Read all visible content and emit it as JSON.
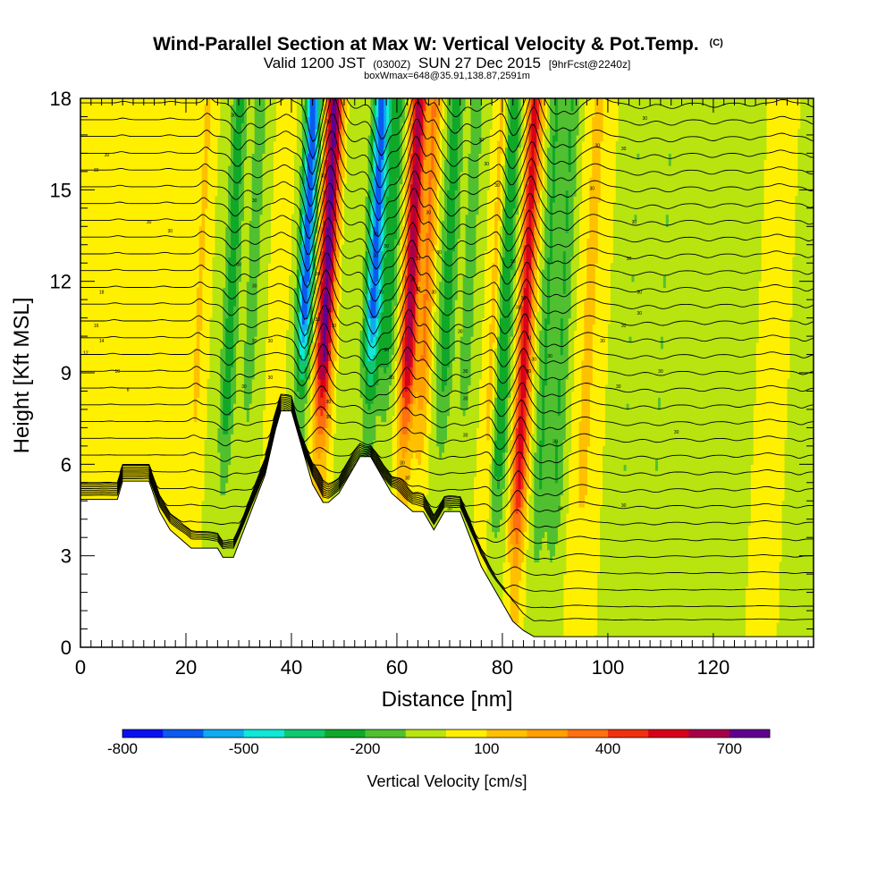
{
  "chart_data": {
    "type": "heatmap",
    "title": "Wind-Parallel Section at Max W: Vertical Velocity & Pot.Temp.",
    "title_mark": "(C)",
    "subtitle_main_a": "Valid 1200 JST",
    "subtitle_small_a": "(0300Z)",
    "subtitle_main_b": "SUN 27 Dec 2015",
    "subtitle_small_b": "[9hrFcst@2240z]",
    "subtitle2": "boxWmax=648@35.91,138.87,2591m",
    "xlabel": "Distance [nm]",
    "ylabel": "Height [Kft MSL]",
    "xlim": [
      0,
      139
    ],
    "ylim": [
      0,
      18
    ],
    "x_ticks": [
      0,
      20,
      40,
      60,
      80,
      100,
      120
    ],
    "y_ticks": [
      0,
      3,
      6,
      9,
      12,
      15,
      18
    ],
    "grid": false,
    "colorbar": {
      "label": "Vertical Velocity [cm/s]",
      "levels": [
        -800,
        -700,
        -600,
        -500,
        -400,
        -300,
        -200,
        -100,
        0,
        100,
        200,
        300,
        400,
        500,
        600,
        700,
        800
      ],
      "tick_labels": [
        -800,
        -500,
        -200,
        100,
        400,
        700
      ],
      "colors": [
        "#0a10f0",
        "#0a5af0",
        "#10aaf0",
        "#10e8d8",
        "#10c870",
        "#10a828",
        "#50c030",
        "#b8e410",
        "#fff000",
        "#ffc000",
        "#ffa000",
        "#ff7010",
        "#f03010",
        "#d80018",
        "#a80048",
        "#600090"
      ]
    },
    "w_bands": [
      {
        "x": 6,
        "w": 30,
        "width": 1.0
      },
      {
        "x": 15,
        "w": 30,
        "width": 1.2
      },
      {
        "x": 22,
        "w": 120,
        "width": 1.0
      },
      {
        "x": 28,
        "w": -250,
        "width": 1.5
      },
      {
        "x": 32,
        "w": -150,
        "width": 1.5
      },
      {
        "x": 37,
        "w": 100,
        "width": 1.2
      },
      {
        "x": 42,
        "w": -700,
        "width": 1.4
      },
      {
        "x": 46,
        "w": 750,
        "width": 1.6
      },
      {
        "x": 50,
        "w": -100,
        "width": 1.4
      },
      {
        "x": 55,
        "w": -650,
        "width": 1.6
      },
      {
        "x": 58,
        "w": -250,
        "width": 1.4
      },
      {
        "x": 62,
        "w": 650,
        "width": 1.5
      },
      {
        "x": 65,
        "w": 300,
        "width": 1.2
      },
      {
        "x": 69,
        "w": -250,
        "width": 1.6
      },
      {
        "x": 73,
        "w": -150,
        "width": 1.5
      },
      {
        "x": 78,
        "w": 150,
        "width": 1.2
      },
      {
        "x": 80,
        "w": -300,
        "width": 1.5
      },
      {
        "x": 84,
        "w": 550,
        "width": 1.4
      },
      {
        "x": 88,
        "w": -200,
        "width": 1.4
      },
      {
        "x": 91,
        "w": -200,
        "width": 1.6
      },
      {
        "x": 96,
        "w": 120,
        "width": 2.0
      },
      {
        "x": 104,
        "w": -100,
        "width": 2.2
      },
      {
        "x": 110,
        "w": -100,
        "width": 2.0
      },
      {
        "x": 118,
        "w": -80,
        "width": 1.8
      },
      {
        "x": 125,
        "w": -60,
        "width": 1.5
      },
      {
        "x": 131,
        "w": 60,
        "width": 1.5
      },
      {
        "x": 137,
        "w": -80,
        "width": 1.2
      }
    ],
    "terrain": [
      {
        "x": 0,
        "h": 4.85
      },
      {
        "x": 7,
        "h": 4.85
      },
      {
        "x": 8,
        "h": 5.45
      },
      {
        "x": 13,
        "h": 5.45
      },
      {
        "x": 15,
        "h": 4.45
      },
      {
        "x": 17,
        "h": 3.85
      },
      {
        "x": 19,
        "h": 3.55
      },
      {
        "x": 21,
        "h": 3.25
      },
      {
        "x": 26,
        "h": 3.25
      },
      {
        "x": 27,
        "h": 2.95
      },
      {
        "x": 29,
        "h": 2.95
      },
      {
        "x": 31,
        "h": 3.85
      },
      {
        "x": 33,
        "h": 4.75
      },
      {
        "x": 35,
        "h": 5.65
      },
      {
        "x": 37,
        "h": 7.15
      },
      {
        "x": 38,
        "h": 7.75
      },
      {
        "x": 40,
        "h": 7.75
      },
      {
        "x": 42,
        "h": 6.55
      },
      {
        "x": 44,
        "h": 5.35
      },
      {
        "x": 46,
        "h": 4.75
      },
      {
        "x": 47,
        "h": 4.75
      },
      {
        "x": 49,
        "h": 5.05
      },
      {
        "x": 51,
        "h": 5.65
      },
      {
        "x": 53,
        "h": 6.25
      },
      {
        "x": 55,
        "h": 6.25
      },
      {
        "x": 57,
        "h": 5.65
      },
      {
        "x": 59,
        "h": 5.05
      },
      {
        "x": 61,
        "h": 4.75
      },
      {
        "x": 63,
        "h": 4.45
      },
      {
        "x": 65,
        "h": 4.45
      },
      {
        "x": 67,
        "h": 3.85
      },
      {
        "x": 69,
        "h": 4.45
      },
      {
        "x": 72,
        "h": 4.45
      },
      {
        "x": 74,
        "h": 3.55
      },
      {
        "x": 76,
        "h": 2.65
      },
      {
        "x": 78,
        "h": 2.05
      },
      {
        "x": 80,
        "h": 1.45
      },
      {
        "x": 82,
        "h": 0.85
      },
      {
        "x": 84,
        "h": 0.55
      },
      {
        "x": 86,
        "h": 0.35
      },
      {
        "x": 88,
        "h": 0.35
      },
      {
        "x": 139,
        "h": 0.35
      }
    ],
    "theta_levels": 32,
    "theta_labels": [
      {
        "x": 5,
        "z": 16.1,
        "text": "30"
      },
      {
        "x": 3,
        "z": 15.6,
        "text": "30"
      },
      {
        "x": 13,
        "z": 13.9,
        "text": "30"
      },
      {
        "x": 17,
        "z": 13.6,
        "text": "30"
      },
      {
        "x": 29,
        "z": 17.4,
        "text": "30"
      },
      {
        "x": 33,
        "z": 14.6,
        "text": "30"
      },
      {
        "x": 30,
        "z": 12.5,
        "text": "30"
      },
      {
        "x": 33,
        "z": 11.8,
        "text": "30"
      },
      {
        "x": 4,
        "z": 11.6,
        "text": "18"
      },
      {
        "x": 3,
        "z": 10.5,
        "text": "16"
      },
      {
        "x": 4,
        "z": 10.0,
        "text": "14"
      },
      {
        "x": 1,
        "z": 9.6,
        "text": "12"
      },
      {
        "x": 7,
        "z": 9.0,
        "text": "10"
      },
      {
        "x": 9,
        "z": 8.4,
        "text": "8"
      },
      {
        "x": 33,
        "z": 10.0,
        "text": "30"
      },
      {
        "x": 31,
        "z": 8.5,
        "text": "30"
      },
      {
        "x": 36,
        "z": 10.0,
        "text": "30"
      },
      {
        "x": 36,
        "z": 8.8,
        "text": "30"
      },
      {
        "x": 45,
        "z": 12.2,
        "text": "30"
      },
      {
        "x": 47,
        "z": 17.2,
        "text": "30"
      },
      {
        "x": 46,
        "z": 15.4,
        "text": "30"
      },
      {
        "x": 47,
        "z": 11.0,
        "text": "30"
      },
      {
        "x": 48,
        "z": 10.5,
        "text": "30"
      },
      {
        "x": 47,
        "z": 9.6,
        "text": "30"
      },
      {
        "x": 45,
        "z": 10.7,
        "text": "30"
      },
      {
        "x": 47,
        "z": 8.0,
        "text": "30"
      },
      {
        "x": 47,
        "z": 7.5,
        "text": "30"
      },
      {
        "x": 56,
        "z": 13.5,
        "text": "30"
      },
      {
        "x": 56,
        "z": 12.8,
        "text": "30"
      },
      {
        "x": 58,
        "z": 13.1,
        "text": "30"
      },
      {
        "x": 57,
        "z": 11.6,
        "text": "30"
      },
      {
        "x": 58,
        "z": 9.7,
        "text": "30"
      },
      {
        "x": 59,
        "z": 8.8,
        "text": "30"
      },
      {
        "x": 61,
        "z": 6.0,
        "text": "30"
      },
      {
        "x": 62,
        "z": 5.5,
        "text": "30"
      },
      {
        "x": 63,
        "z": 12.0,
        "text": "30"
      },
      {
        "x": 64,
        "z": 12.7,
        "text": "30"
      },
      {
        "x": 64,
        "z": 11.7,
        "text": "30"
      },
      {
        "x": 66,
        "z": 14.2,
        "text": "30"
      },
      {
        "x": 68,
        "z": 12.9,
        "text": "30"
      },
      {
        "x": 67,
        "z": 11.6,
        "text": "30"
      },
      {
        "x": 72,
        "z": 10.3,
        "text": "30"
      },
      {
        "x": 73,
        "z": 9.0,
        "text": "30"
      },
      {
        "x": 73,
        "z": 8.1,
        "text": "30"
      },
      {
        "x": 73,
        "z": 6.9,
        "text": "30"
      },
      {
        "x": 70,
        "z": 4.5,
        "text": "30"
      },
      {
        "x": 76,
        "z": 16.6,
        "text": "30"
      },
      {
        "x": 77,
        "z": 15.8,
        "text": "30"
      },
      {
        "x": 79,
        "z": 15.1,
        "text": "30"
      },
      {
        "x": 82,
        "z": 12.6,
        "text": "30"
      },
      {
        "x": 84,
        "z": 11.4,
        "text": "30"
      },
      {
        "x": 83,
        "z": 11.1,
        "text": "30"
      },
      {
        "x": 85,
        "z": 10.1,
        "text": "30"
      },
      {
        "x": 86,
        "z": 9.4,
        "text": "30"
      },
      {
        "x": 85,
        "z": 9.0,
        "text": "30"
      },
      {
        "x": 89,
        "z": 9.5,
        "text": "30"
      },
      {
        "x": 90,
        "z": 6.7,
        "text": "30"
      },
      {
        "x": 91,
        "z": 4.5,
        "text": "30"
      },
      {
        "x": 98,
        "z": 16.4,
        "text": "30"
      },
      {
        "x": 97,
        "z": 15.0,
        "text": "30"
      },
      {
        "x": 103,
        "z": 16.3,
        "text": "30"
      },
      {
        "x": 105,
        "z": 13.9,
        "text": "30"
      },
      {
        "x": 104,
        "z": 12.7,
        "text": "30"
      },
      {
        "x": 106,
        "z": 11.6,
        "text": "30"
      },
      {
        "x": 106,
        "z": 10.9,
        "text": "30"
      },
      {
        "x": 99,
        "z": 10.0,
        "text": "30"
      },
      {
        "x": 103,
        "z": 10.5,
        "text": "30"
      },
      {
        "x": 102,
        "z": 8.5,
        "text": "30"
      },
      {
        "x": 110,
        "z": 9.0,
        "text": "30"
      },
      {
        "x": 113,
        "z": 7.0,
        "text": "30"
      },
      {
        "x": 103,
        "z": 4.6,
        "text": "30"
      },
      {
        "x": 107,
        "z": 17.3,
        "text": "30"
      }
    ]
  }
}
